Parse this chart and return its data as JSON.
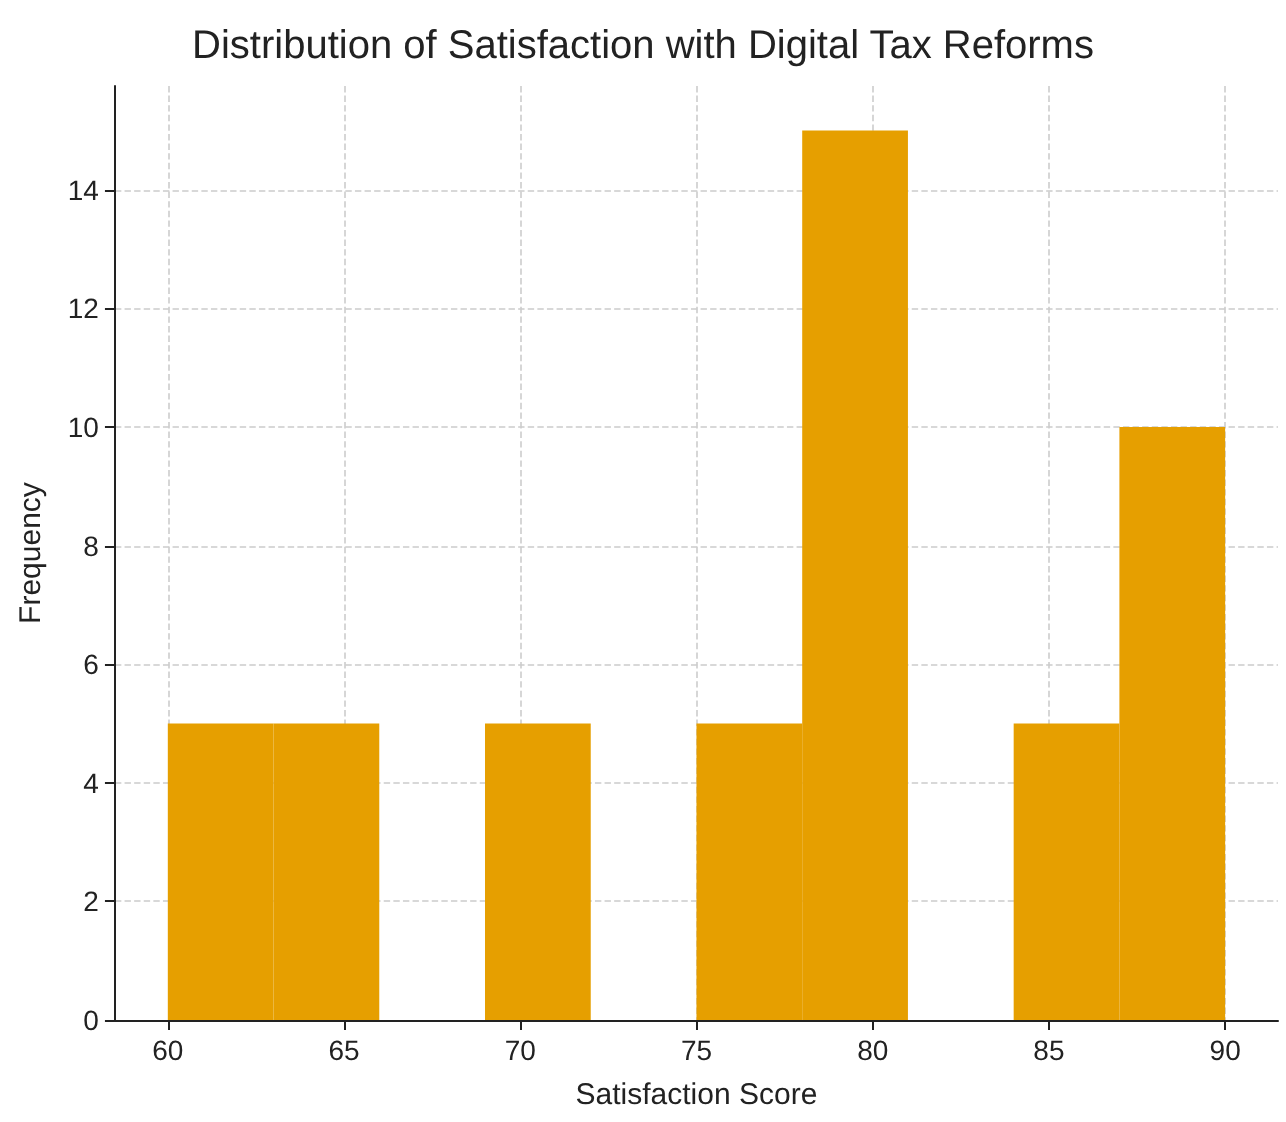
{
  "chart_data": {
    "type": "histogram",
    "title": "Distribution of Satisfaction with Digital Tax Reforms",
    "xlabel": "Satisfaction Score",
    "ylabel": "Frequency",
    "bins": [
      60,
      63,
      66,
      69,
      72,
      75,
      78,
      81,
      84,
      87,
      90
    ],
    "values": [
      5,
      5,
      0,
      5,
      0,
      5,
      15,
      0,
      5,
      10
    ],
    "color": "#e69f00",
    "xlim": [
      58.5,
      91.5
    ],
    "xticks": [
      60,
      65,
      70,
      75,
      80,
      85,
      90
    ],
    "ylim": [
      0,
      15.75
    ],
    "yticks": [
      0,
      2,
      4,
      6,
      8,
      10,
      12,
      14
    ],
    "grid": true
  }
}
